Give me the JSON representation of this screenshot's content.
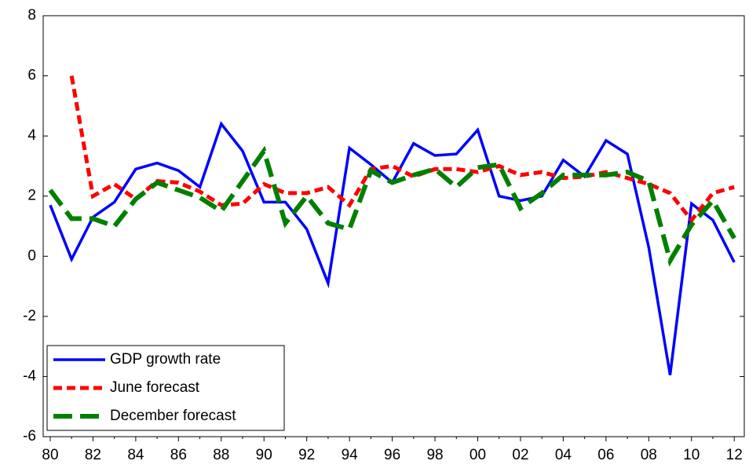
{
  "chart_data": {
    "type": "line",
    "x": [
      1980,
      1981,
      1982,
      1983,
      1984,
      1985,
      1986,
      1987,
      1988,
      1989,
      1990,
      1991,
      1992,
      1993,
      1994,
      1995,
      1996,
      1997,
      1998,
      1999,
      2000,
      2001,
      2002,
      2003,
      2004,
      2005,
      2006,
      2007,
      2008,
      2009,
      2010,
      2011,
      2012
    ],
    "series": [
      {
        "name": "GDP growth rate",
        "color": "#0000ff",
        "style": "solid",
        "values": [
          1.7,
          -0.1,
          1.3,
          1.8,
          2.9,
          3.1,
          2.85,
          2.3,
          4.4,
          3.5,
          1.8,
          1.8,
          0.9,
          -0.9,
          3.6,
          3.05,
          2.45,
          3.75,
          3.35,
          3.4,
          4.2,
          2.0,
          1.85,
          2.0,
          3.2,
          2.65,
          3.85,
          3.4,
          0.3,
          -3.95,
          1.75,
          1.2,
          -0.2
        ]
      },
      {
        "name": "June forecast",
        "color": "#ff0000",
        "style": "dashed",
        "values": [
          null,
          6.0,
          2.0,
          2.4,
          1.9,
          2.5,
          2.45,
          2.15,
          1.7,
          1.75,
          2.4,
          2.1,
          2.1,
          2.3,
          1.7,
          2.9,
          3.0,
          2.65,
          2.9,
          2.9,
          2.8,
          3.0,
          2.7,
          2.8,
          2.6,
          2.65,
          2.8,
          2.6,
          2.4,
          2.1,
          1.2,
          2.1,
          2.3
        ]
      },
      {
        "name": "December forecast",
        "color": "#008000",
        "style": "long-dashed",
        "values": [
          2.2,
          1.25,
          1.25,
          1.0,
          1.9,
          2.45,
          2.2,
          1.95,
          1.5,
          2.5,
          3.5,
          1.1,
          2.0,
          1.1,
          0.9,
          2.85,
          2.45,
          2.7,
          2.9,
          2.3,
          2.95,
          3.05,
          1.6,
          2.1,
          2.7,
          2.7,
          2.7,
          2.8,
          2.5,
          -0.15,
          1.05,
          1.85,
          0.6
        ]
      }
    ],
    "xlim": [
      1979.67,
      2012.47
    ],
    "xticks": [
      {
        "value": 1980,
        "label": "80"
      },
      {
        "value": 1982,
        "label": "82"
      },
      {
        "value": 1984,
        "label": "84"
      },
      {
        "value": 1986,
        "label": "86"
      },
      {
        "value": 1988,
        "label": "88"
      },
      {
        "value": 1990,
        "label": "90"
      },
      {
        "value": 1992,
        "label": "92"
      },
      {
        "value": 1994,
        "label": "94"
      },
      {
        "value": 1996,
        "label": "96"
      },
      {
        "value": 1998,
        "label": "98"
      },
      {
        "value": 2000,
        "label": "00"
      },
      {
        "value": 2002,
        "label": "02"
      },
      {
        "value": 2004,
        "label": "04"
      },
      {
        "value": 2006,
        "label": "06"
      },
      {
        "value": 2008,
        "label": "08"
      },
      {
        "value": 2010,
        "label": "10"
      },
      {
        "value": 2012,
        "label": "12"
      }
    ],
    "ylim": [
      -6,
      8
    ],
    "yticks": [
      -6,
      -4,
      -2,
      0,
      2,
      4,
      6,
      8
    ],
    "legend": "lower left"
  }
}
